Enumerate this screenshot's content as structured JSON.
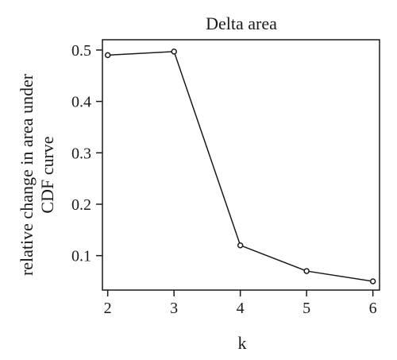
{
  "chart_data": {
    "type": "line",
    "title": "Delta area",
    "xlabel": "k",
    "ylabel": [
      "relative change in area under",
      "CDF curve"
    ],
    "x": [
      2,
      3,
      4,
      5,
      6
    ],
    "values": [
      0.49,
      0.497,
      0.12,
      0.07,
      0.05
    ],
    "xlim": [
      1.92,
      6.1
    ],
    "ylim": [
      0.033,
      0.52
    ],
    "xticks": [
      "2",
      "3",
      "4",
      "5",
      "6"
    ],
    "yticks": [
      "0.1",
      "0.2",
      "0.3",
      "0.4",
      "0.5"
    ],
    "marker": "open-circle",
    "grid": false,
    "legend": "none"
  }
}
